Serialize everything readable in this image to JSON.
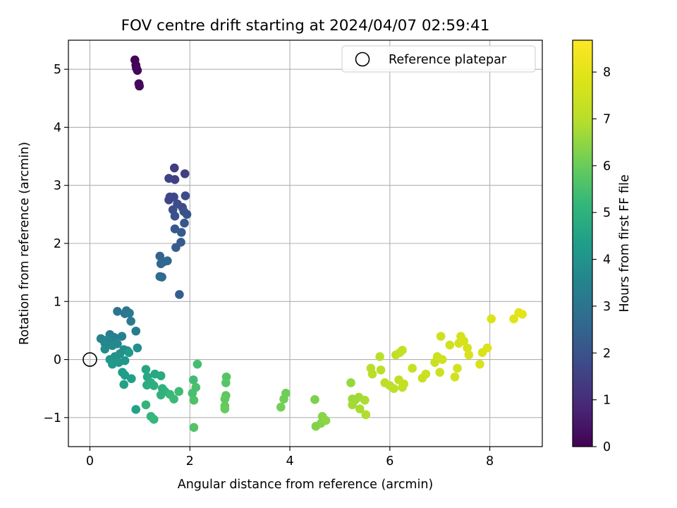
{
  "chart_data": {
    "type": "scatter",
    "title": "FOV centre drift starting at 2024/04/07 02:59:41",
    "xlabel": "Angular distance from reference (arcmin)",
    "ylabel": "Rotation from reference (arcmin)",
    "colorbar_label": "Hours from first FF file",
    "xlim": [
      -0.43,
      9.05
    ],
    "ylim": [
      -1.5,
      5.5
    ],
    "x_ticks": [
      "0",
      "2",
      "4",
      "6",
      "8"
    ],
    "y_ticks": [
      "−1",
      "0",
      "1",
      "2",
      "3",
      "4",
      "5"
    ],
    "colorbar_ticks": [
      "0",
      "1",
      "2",
      "3",
      "4",
      "5",
      "6",
      "7",
      "8"
    ],
    "colorbar_range": [
      0,
      8.68
    ],
    "colormap": "viridis",
    "grid": true,
    "legend": {
      "position": "top-right",
      "label": "Reference platepar"
    },
    "reference_point": {
      "x": 0,
      "y": 0
    },
    "points": [
      [
        0.9,
        5.16,
        0.05
      ],
      [
        0.92,
        5.07,
        0.08
      ],
      [
        0.93,
        5.02,
        0.1
      ],
      [
        0.95,
        4.98,
        0.12
      ],
      [
        0.98,
        4.75,
        0.15
      ],
      [
        0.99,
        4.71,
        0.18
      ],
      [
        1.69,
        3.3,
        1.4
      ],
      [
        1.7,
        3.1,
        1.45
      ],
      [
        1.9,
        3.2,
        1.5
      ],
      [
        1.58,
        3.12,
        1.55
      ],
      [
        1.6,
        2.8,
        1.6
      ],
      [
        1.58,
        2.75,
        1.65
      ],
      [
        1.68,
        2.8,
        1.7
      ],
      [
        1.85,
        2.62,
        1.75
      ],
      [
        1.91,
        2.82,
        1.8
      ],
      [
        1.75,
        2.68,
        1.85
      ],
      [
        1.66,
        2.58,
        1.9
      ],
      [
        1.7,
        2.47,
        1.95
      ],
      [
        1.88,
        2.55,
        2.0
      ],
      [
        1.94,
        2.5,
        2.05
      ],
      [
        1.89,
        2.35,
        2.1
      ],
      [
        1.7,
        2.25,
        2.15
      ],
      [
        1.83,
        2.19,
        2.2
      ],
      [
        1.82,
        2.02,
        2.25
      ],
      [
        1.72,
        1.93,
        2.3
      ],
      [
        1.79,
        1.12,
        2.35
      ],
      [
        1.4,
        1.78,
        2.5
      ],
      [
        1.47,
        1.68,
        2.55
      ],
      [
        1.42,
        1.65,
        2.6
      ],
      [
        1.55,
        1.7,
        2.65
      ],
      [
        1.4,
        1.43,
        2.7
      ],
      [
        1.44,
        1.42,
        2.75
      ],
      [
        0.55,
        0.83,
        3.0
      ],
      [
        0.73,
        0.84,
        3.05
      ],
      [
        0.79,
        0.8,
        3.1
      ],
      [
        0.7,
        0.79,
        3.15
      ],
      [
        0.82,
        0.66,
        3.2
      ],
      [
        0.92,
        0.49,
        3.25
      ],
      [
        0.4,
        0.43,
        3.3
      ],
      [
        0.45,
        0.39,
        3.35
      ],
      [
        0.49,
        0.38,
        3.4
      ],
      [
        0.64,
        0.4,
        3.45
      ],
      [
        0.22,
        0.36,
        3.5
      ],
      [
        0.35,
        0.34,
        3.55
      ],
      [
        0.3,
        0.28,
        3.6
      ],
      [
        0.55,
        0.27,
        3.65
      ],
      [
        0.45,
        0.24,
        3.7
      ],
      [
        0.3,
        0.18,
        3.75
      ],
      [
        0.68,
        0.17,
        3.8
      ],
      [
        0.75,
        0.15,
        3.85
      ],
      [
        0.95,
        0.2,
        3.9
      ],
      [
        0.6,
        0.1,
        3.95
      ],
      [
        0.5,
        0.05,
        4.0
      ],
      [
        0.4,
        0.0,
        4.05
      ],
      [
        0.7,
        -0.02,
        4.1
      ],
      [
        0.58,
        -0.05,
        4.15
      ],
      [
        0.45,
        -0.08,
        4.2
      ],
      [
        0.78,
        0.12,
        4.25
      ],
      [
        0.65,
        -0.22,
        4.3
      ],
      [
        0.7,
        -0.27,
        4.35
      ],
      [
        0.83,
        -0.33,
        4.4
      ],
      [
        0.68,
        -0.43,
        4.45
      ],
      [
        0.92,
        -0.86,
        4.5
      ],
      [
        1.12,
        -0.17,
        4.6
      ],
      [
        1.15,
        -0.3,
        4.65
      ],
      [
        1.3,
        -0.25,
        4.7
      ],
      [
        1.42,
        -0.28,
        4.75
      ],
      [
        1.14,
        -0.44,
        4.8
      ],
      [
        1.22,
        -0.4,
        4.85
      ],
      [
        1.28,
        -0.45,
        4.9
      ],
      [
        1.45,
        -0.5,
        4.95
      ],
      [
        1.5,
        -0.55,
        5.0
      ],
      [
        1.42,
        -0.61,
        5.05
      ],
      [
        1.12,
        -0.78,
        5.1
      ],
      [
        1.22,
        -0.98,
        5.15
      ],
      [
        1.28,
        -1.03,
        5.2
      ],
      [
        1.6,
        -0.6,
        5.25
      ],
      [
        1.68,
        -0.68,
        5.3
      ],
      [
        1.78,
        -0.55,
        5.35
      ],
      [
        2.07,
        -0.35,
        5.4
      ],
      [
        2.15,
        -0.08,
        5.45
      ],
      [
        2.05,
        -0.58,
        5.5
      ],
      [
        2.12,
        -0.48,
        5.55
      ],
      [
        2.08,
        -0.7,
        5.6
      ],
      [
        2.08,
        -1.17,
        5.65
      ],
      [
        2.73,
        -0.3,
        5.7
      ],
      [
        2.72,
        -0.4,
        5.75
      ],
      [
        2.72,
        -0.62,
        5.8
      ],
      [
        2.7,
        -0.68,
        5.85
      ],
      [
        2.7,
        -0.8,
        5.9
      ],
      [
        2.7,
        -0.85,
        5.95
      ],
      [
        3.92,
        -0.58,
        6.05
      ],
      [
        3.88,
        -0.68,
        6.1
      ],
      [
        3.82,
        -0.82,
        6.15
      ],
      [
        4.5,
        -0.69,
        6.25
      ],
      [
        4.52,
        -1.15,
        6.3
      ],
      [
        4.62,
        -1.1,
        6.35
      ],
      [
        4.65,
        -0.98,
        6.4
      ],
      [
        4.72,
        -1.05,
        6.45
      ],
      [
        5.22,
        -0.4,
        6.55
      ],
      [
        5.25,
        -0.68,
        6.6
      ],
      [
        5.3,
        -0.7,
        6.65
      ],
      [
        5.38,
        -0.65,
        6.7
      ],
      [
        5.25,
        -0.78,
        6.75
      ],
      [
        5.4,
        -0.85,
        6.8
      ],
      [
        5.5,
        -0.7,
        6.85
      ],
      [
        5.52,
        -0.95,
        6.9
      ],
      [
        5.62,
        -0.15,
        7.0
      ],
      [
        5.65,
        -0.25,
        7.02
      ],
      [
        5.8,
        0.05,
        7.05
      ],
      [
        5.82,
        -0.18,
        7.08
      ],
      [
        5.9,
        -0.4,
        7.1
      ],
      [
        6.0,
        -0.45,
        7.12
      ],
      [
        6.08,
        -0.5,
        7.15
      ],
      [
        6.12,
        0.08,
        7.18
      ],
      [
        6.18,
        -0.35,
        7.2
      ],
      [
        6.2,
        0.12,
        7.22
      ],
      [
        6.25,
        -0.48,
        7.25
      ],
      [
        6.25,
        0.16,
        7.28
      ],
      [
        6.28,
        -0.42,
        7.3
      ],
      [
        6.45,
        -0.15,
        7.32
      ],
      [
        6.65,
        -0.32,
        7.35
      ],
      [
        6.72,
        -0.25,
        7.38
      ],
      [
        6.9,
        -0.05,
        7.4
      ],
      [
        6.95,
        0.05,
        7.42
      ],
      [
        7.0,
        -0.22,
        7.45
      ],
      [
        7.02,
        0.4,
        7.48
      ],
      [
        7.05,
        0.0,
        7.5
      ],
      [
        7.2,
        0.25,
        7.52
      ],
      [
        7.3,
        -0.3,
        7.55
      ],
      [
        7.35,
        -0.15,
        7.58
      ],
      [
        7.38,
        0.28,
        7.6
      ],
      [
        7.42,
        0.4,
        7.62
      ],
      [
        7.48,
        0.32,
        7.65
      ],
      [
        7.55,
        0.2,
        7.68
      ],
      [
        7.58,
        0.08,
        7.7
      ],
      [
        7.8,
        -0.08,
        7.72
      ],
      [
        7.85,
        0.12,
        7.75
      ],
      [
        7.95,
        0.2,
        7.78
      ],
      [
        8.03,
        0.7,
        7.8
      ],
      [
        8.48,
        0.7,
        7.9
      ],
      [
        8.58,
        0.81,
        7.95
      ],
      [
        8.65,
        0.78,
        8.0
      ]
    ]
  }
}
